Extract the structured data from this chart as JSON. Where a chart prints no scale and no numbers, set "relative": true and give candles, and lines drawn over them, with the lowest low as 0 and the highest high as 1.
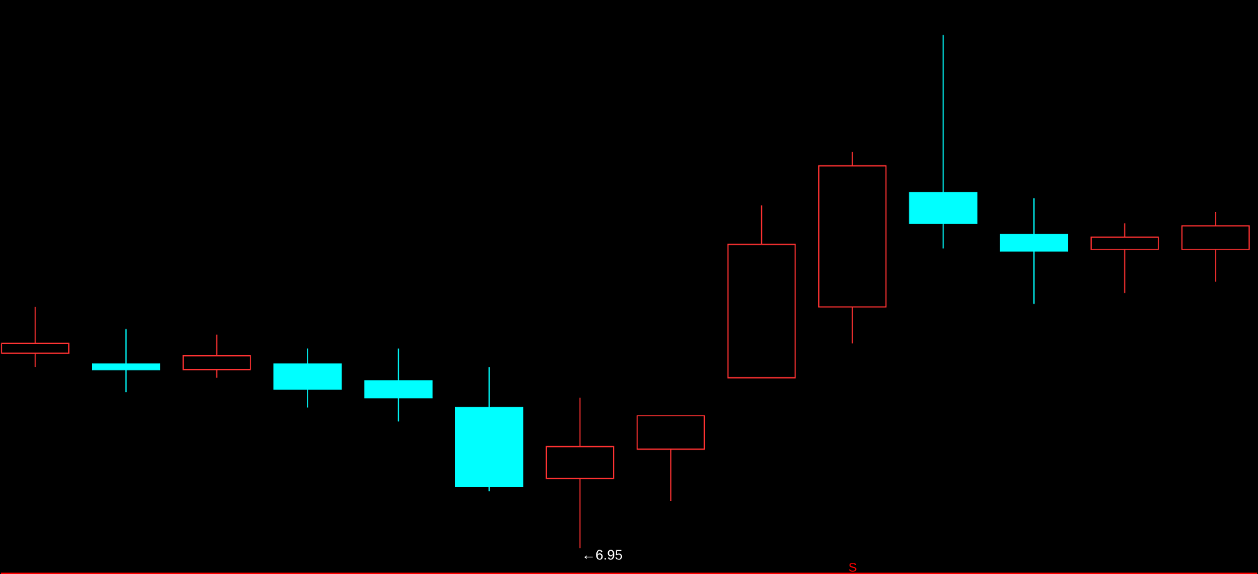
{
  "chart_data": {
    "type": "candlestick",
    "relative": true,
    "categories": [
      null,
      null,
      null,
      null,
      null,
      null,
      null,
      null,
      null,
      null,
      null,
      null,
      null,
      null
    ],
    "ohlc": [
      [
        0.38,
        0.47,
        0.353,
        0.399
      ],
      [
        0.359,
        0.427,
        0.304,
        0.348
      ],
      [
        0.348,
        0.416,
        0.332,
        0.375
      ],
      [
        0.359,
        0.389,
        0.274,
        0.31
      ],
      [
        0.326,
        0.389,
        0.247,
        0.293
      ],
      [
        0.274,
        0.353,
        0.111,
        0.12
      ],
      [
        0.136,
        0.293,
        0.0,
        0.198
      ],
      [
        0.193,
        0.258,
        0.092,
        0.258
      ],
      [
        0.332,
        0.668,
        0.332,
        0.592
      ],
      [
        0.47,
        0.772,
        0.399,
        0.745
      ],
      [
        0.693,
        1.0,
        0.584,
        0.633
      ],
      [
        0.611,
        0.682,
        0.476,
        0.579
      ],
      [
        0.582,
        0.633,
        0.497,
        0.606
      ],
      [
        0.582,
        0.655,
        0.519,
        0.628
      ]
    ],
    "colors": [
      "#ff3232",
      "#00ffff",
      "#ff3232",
      "#00ffff",
      "#00ffff",
      "#00ffff",
      "#ff3232",
      "#ff3232",
      "#ff3232",
      "#ff3232",
      "#00ffff",
      "#00ffff",
      "#ff3232",
      "#ff3232"
    ],
    "annotations": [
      "←6.95",
      "S"
    ]
  }
}
